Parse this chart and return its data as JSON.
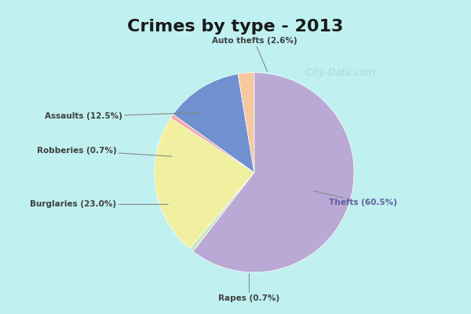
{
  "title": "Crimes by type - 2013",
  "title_fontsize": 16,
  "slices": [
    {
      "label": "Thefts (60.5%)",
      "value": 60.5,
      "color": "#b9a9d4"
    },
    {
      "label": "Rapes (0.7%)",
      "value": 0.7,
      "color": "#c8e6c0"
    },
    {
      "label": "Burglaries (23.0%)",
      "value": 23.0,
      "color": "#f0f0a0"
    },
    {
      "label": "Robberies (0.7%)",
      "value": 0.7,
      "color": "#f4aaaa"
    },
    {
      "label": "Assaults (12.5%)",
      "value": 12.5,
      "color": "#7090d0"
    },
    {
      "label": "Auto thefts (2.6%)",
      "value": 2.6,
      "color": "#f5c8a0"
    }
  ],
  "background_color": "#c0f0f0",
  "inner_bg_color": "#d8eed8",
  "startangle": 90,
  "watermark": "  City-Data.com"
}
